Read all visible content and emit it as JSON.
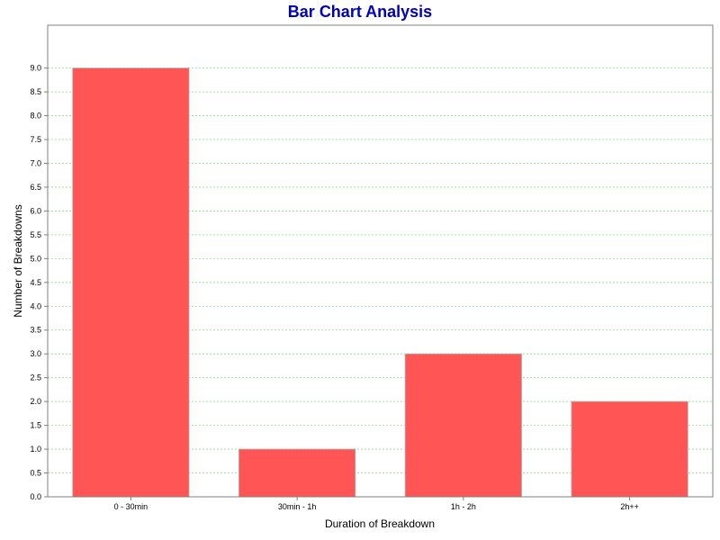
{
  "colors": {
    "title": "#0000c0",
    "bar_fill": "#ff5555",
    "bar_stroke": "#b0b0b0",
    "grid": "#80e080",
    "axis": "#808080",
    "background": "#ffffff"
  },
  "chart_data": {
    "type": "bar",
    "title": "Bar Chart Analysis",
    "xlabel": "Duration of Breakdown",
    "ylabel": "Number of Breakdowns",
    "categories": [
      "0 - 30min",
      "30min - 1h",
      "1h - 2h",
      "2h++"
    ],
    "series": [
      {
        "values": [
          9,
          1,
          3,
          2
        ]
      }
    ],
    "ylim": [
      0,
      9.9
    ],
    "y_ticks": [
      "0.0",
      "0.5",
      "1.0",
      "1.5",
      "2.0",
      "2.5",
      "3.0",
      "3.5",
      "4.0",
      "4.5",
      "5.0",
      "5.5",
      "6.0",
      "6.5",
      "7.0",
      "7.5",
      "8.0",
      "8.5",
      "9.0"
    ],
    "grid": true,
    "grid_style": "dashed-horizontal",
    "legend": "none"
  }
}
